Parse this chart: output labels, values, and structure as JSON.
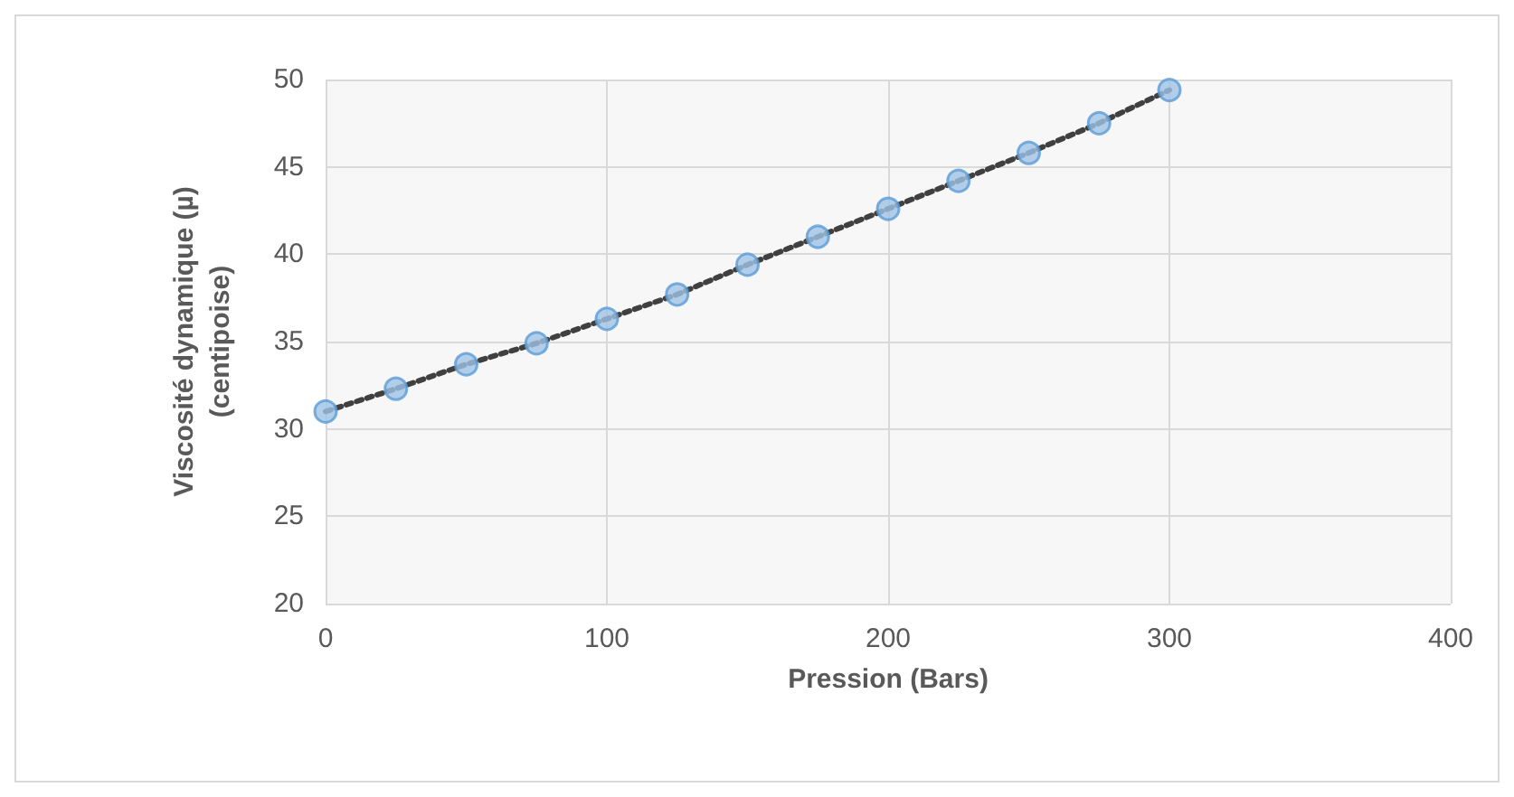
{
  "chart_data": {
    "type": "scatter",
    "xlabel": "Pression (Bars)",
    "ylabel": "Viscosité dynamique (µ)\n(centipoise)",
    "x": [
      0,
      25,
      50,
      75,
      100,
      125,
      150,
      175,
      200,
      225,
      250,
      275,
      300
    ],
    "series": [
      {
        "type": "line",
        "color": "#404040",
        "line_style": "dotted",
        "marker": "none",
        "values": [
          31.0,
          32.3,
          33.7,
          34.9,
          36.3,
          37.7,
          39.4,
          41.0,
          42.6,
          44.2,
          45.8,
          47.5,
          49.4
        ]
      },
      {
        "color": "#9dc3e6",
        "marker": "circle",
        "values": [
          31.0,
          32.3,
          33.7,
          34.9,
          36.3,
          37.7,
          39.4,
          41.0,
          42.6,
          44.2,
          45.8,
          47.5,
          49.4
        ]
      }
    ],
    "xlim": [
      0,
      400
    ],
    "xticks": [
      0,
      100,
      200,
      300,
      400
    ],
    "ylim": [
      20,
      50
    ],
    "yticks": [
      20,
      25,
      30,
      35,
      40,
      45,
      50
    ],
    "grid": true
  }
}
